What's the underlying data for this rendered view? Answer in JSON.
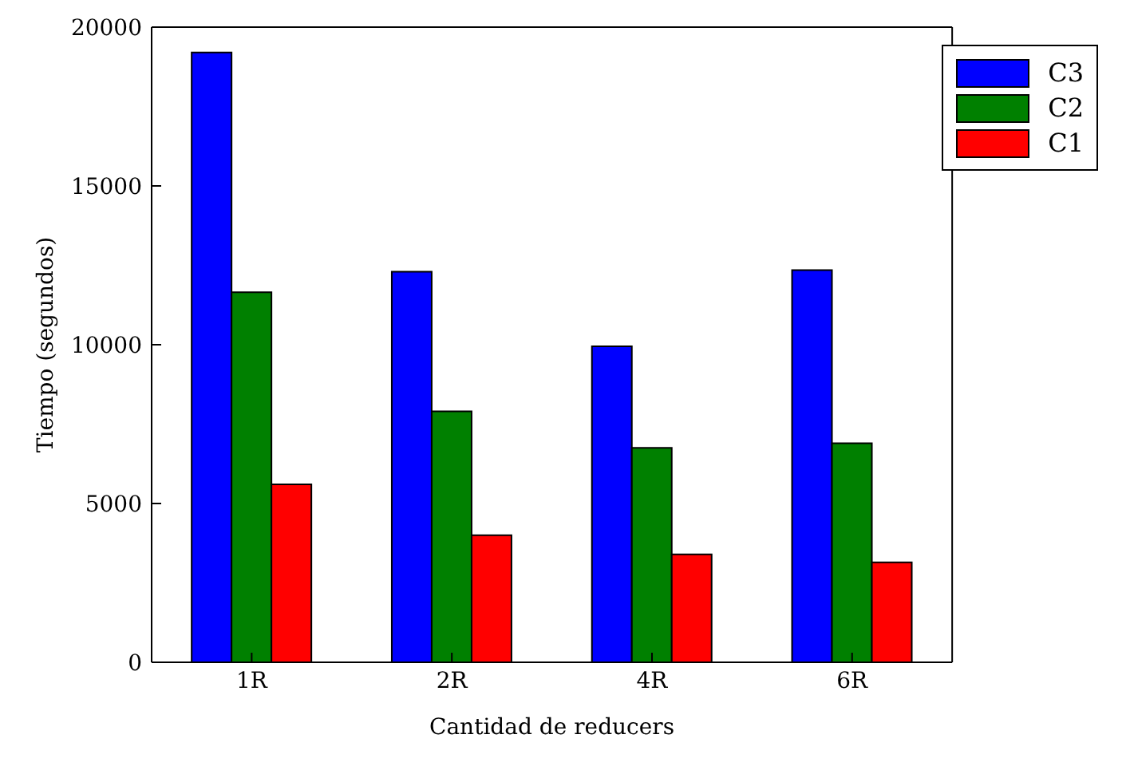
{
  "chart_data": {
    "type": "bar",
    "xlabel": "Cantidad de reducers",
    "ylabel": "Tiempo (segundos)",
    "categories": [
      "1R",
      "2R",
      "4R",
      "6R"
    ],
    "series": [
      {
        "name": "C3",
        "color": "#0000ff",
        "values": [
          19200,
          12300,
          9950,
          12350
        ]
      },
      {
        "name": "C2",
        "color": "#008000",
        "values": [
          11650,
          7900,
          6750,
          6900
        ]
      },
      {
        "name": "C1",
        "color": "#ff0000",
        "values": [
          5600,
          4000,
          3400,
          3150
        ]
      }
    ],
    "ylim": [
      0,
      20000
    ],
    "yticks": [
      0,
      5000,
      10000,
      15000,
      20000
    ],
    "grid": false,
    "legend": "top right"
  }
}
